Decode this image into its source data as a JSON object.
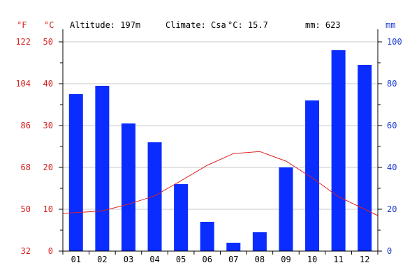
{
  "header": {
    "altitude": "Altitude: 197m",
    "climate": "Climate: Csa",
    "mean_temp": "°C: 15.7",
    "precip_total": "mm: 623"
  },
  "units": {
    "fahrenheit": "°F",
    "celsius": "°C",
    "mm": "mm"
  },
  "colors": {
    "precip_bar": "#0a2cff",
    "temp_line": "#e02020",
    "red_label": "#d42020",
    "blue_label": "#1f3fd1"
  },
  "chart_data": {
    "type": "bar",
    "title": "",
    "categories": [
      "01",
      "02",
      "03",
      "04",
      "05",
      "06",
      "07",
      "08",
      "09",
      "10",
      "11",
      "12"
    ],
    "series": [
      {
        "type": "bar",
        "axis": "right",
        "values": [
          75,
          79,
          61,
          52,
          32,
          14,
          4,
          9,
          40,
          72,
          96,
          89
        ]
      },
      {
        "type": "line",
        "axis": "left",
        "values": [
          9.2,
          9.6,
          11.2,
          13.2,
          16.8,
          20.5,
          23.3,
          23.8,
          21.5,
          17.5,
          13.0,
          10.0
        ]
      }
    ],
    "y_left": {
      "label": "°C",
      "ylim": [
        0,
        50
      ],
      "ticks": [
        0,
        10,
        20,
        30,
        40,
        50
      ]
    },
    "y_far_left": {
      "label": "°F",
      "ticks": [
        32,
        50,
        68,
        86,
        104,
        122
      ]
    },
    "y_right": {
      "label": "mm",
      "ylim": [
        0,
        100
      ],
      "ticks": [
        0,
        20,
        40,
        60,
        80,
        100
      ]
    },
    "grid": true
  }
}
